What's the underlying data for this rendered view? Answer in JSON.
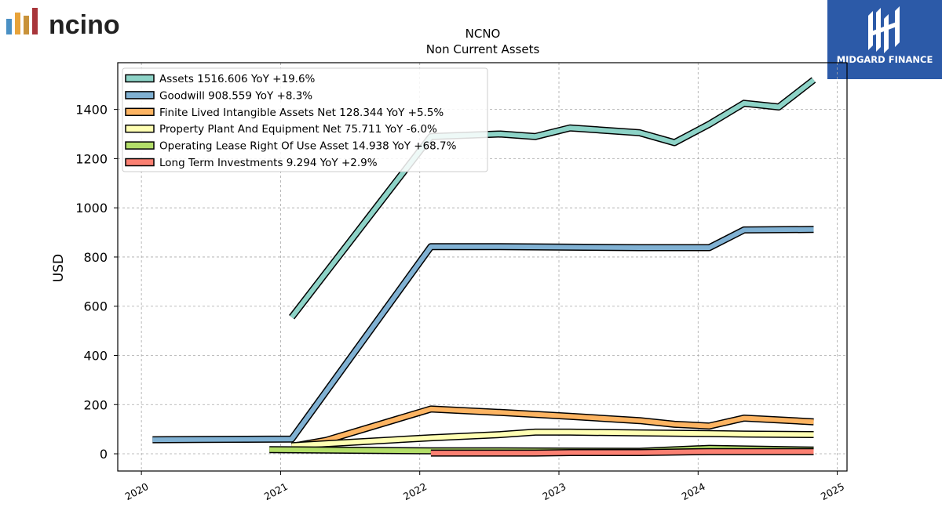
{
  "brand": {
    "left_logo_text": "ncino",
    "right_logo_text": "MIDGARD FINANCE",
    "left_bar_colors": [
      "#4a90c4",
      "#e8a33a",
      "#7a9a3a",
      "#c0392b",
      "#8b1f3a"
    ]
  },
  "chart_data": {
    "type": "line",
    "title": "NCNO",
    "subtitle": "Non Current  Assets",
    "ylabel": "USD",
    "xlabel": "",
    "xlim": [
      2019.83,
      2025.07
    ],
    "ylim": [
      -70,
      1590
    ],
    "x_ticks": [
      2020,
      2021,
      2022,
      2023,
      2024,
      2025
    ],
    "y_ticks": [
      0,
      200,
      400,
      600,
      800,
      1000,
      1200,
      1400
    ],
    "grid": true,
    "legend_position": "top-left",
    "series": [
      {
        "name": "Assets",
        "legend_label": "Assets  1516.606 YoY +19.6%",
        "color": "#8dd3c7",
        "points": [
          [
            2021.08,
            555
          ],
          [
            2022.08,
            1290
          ],
          [
            2022.58,
            1300
          ],
          [
            2022.83,
            1290
          ],
          [
            2023.08,
            1325
          ],
          [
            2023.58,
            1305
          ],
          [
            2023.83,
            1265
          ],
          [
            2024.08,
            1340
          ],
          [
            2024.33,
            1425
          ],
          [
            2024.58,
            1410
          ],
          [
            2024.83,
            1520
          ]
        ]
      },
      {
        "name": "Goodwill",
        "legend_label": "Goodwill  908.559 YoY +8.3%",
        "color": "#80b1d3",
        "points": [
          [
            2020.08,
            57
          ],
          [
            2021.08,
            60
          ],
          [
            2022.08,
            842
          ],
          [
            2022.58,
            842
          ],
          [
            2023.08,
            840
          ],
          [
            2023.58,
            838
          ],
          [
            2024.08,
            838
          ],
          [
            2024.33,
            910
          ],
          [
            2024.83,
            912
          ]
        ]
      },
      {
        "name": "Finite Lived Intangible Assets Net",
        "legend_label": "Finite Lived Intangible Assets Net  128.344 YoY +5.5%",
        "color": "#fdb462",
        "points": [
          [
            2021.08,
            30
          ],
          [
            2021.33,
            55
          ],
          [
            2022.08,
            182
          ],
          [
            2022.58,
            168
          ],
          [
            2023.08,
            152
          ],
          [
            2023.58,
            135
          ],
          [
            2023.83,
            120
          ],
          [
            2024.08,
            113
          ],
          [
            2024.33,
            145
          ],
          [
            2024.83,
            130
          ]
        ]
      },
      {
        "name": "Property Plant And Equipment Net",
        "legend_label": "Property Plant And Equipment Net  75.711 YoY -6.0%",
        "color": "#ffffb3",
        "points": [
          [
            2021.08,
            33
          ],
          [
            2022.08,
            65
          ],
          [
            2022.58,
            78
          ],
          [
            2022.83,
            88
          ],
          [
            2023.08,
            88
          ],
          [
            2023.58,
            85
          ],
          [
            2024.08,
            82
          ],
          [
            2024.33,
            80
          ],
          [
            2024.83,
            78
          ]
        ]
      },
      {
        "name": "Operating Lease Right Of Use Asset",
        "legend_label": "Operating Lease Right Of Use Asset  14.938 YoY +68.7%",
        "color": "#b3de69",
        "points": [
          [
            2020.92,
            17
          ],
          [
            2022.08,
            12
          ],
          [
            2022.58,
            12
          ],
          [
            2023.08,
            11
          ],
          [
            2023.58,
            10
          ],
          [
            2024.08,
            22
          ],
          [
            2024.83,
            15
          ]
        ]
      },
      {
        "name": "Long Term Investments",
        "legend_label": "Long Term Investments  9.294 YoY +2.9%",
        "color": "#fb8072",
        "points": [
          [
            2022.08,
            3
          ],
          [
            2022.83,
            3
          ],
          [
            2023.08,
            5
          ],
          [
            2023.58,
            5
          ],
          [
            2024.08,
            9
          ],
          [
            2024.83,
            9
          ]
        ]
      }
    ]
  }
}
